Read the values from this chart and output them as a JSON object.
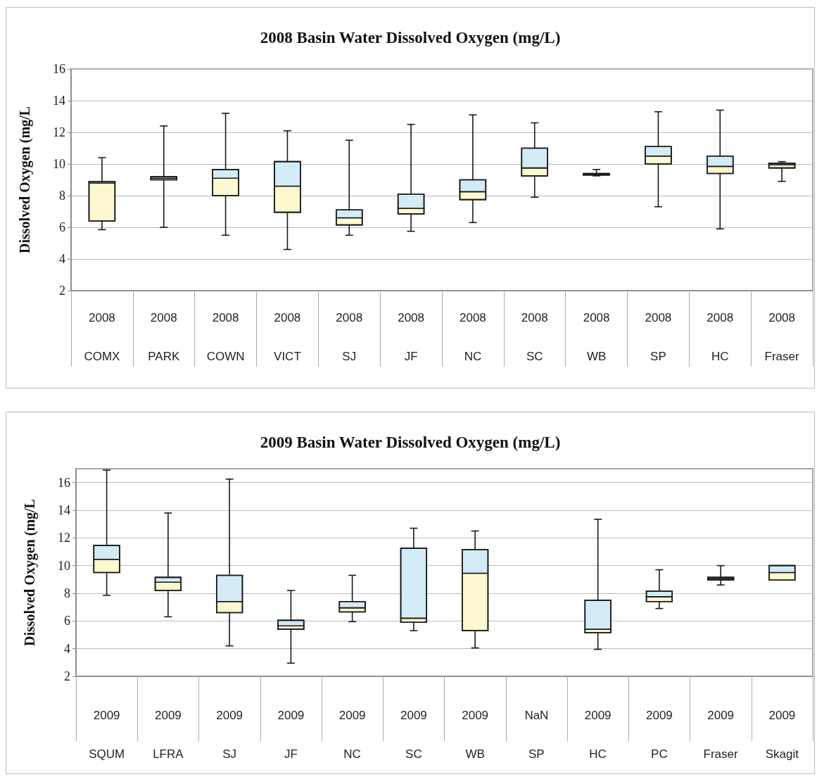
{
  "chart_data": [
    {
      "type": "box",
      "title": "2008 Basin Water Dissolved Oxygen (mg/L)",
      "ylabel": "Dissolved Oxygen (mg/L",
      "categories": [
        "2008\nCOMX",
        "2008\nPARK",
        "2008\nCOWN",
        "2008\nVICT",
        "2008\nSJ",
        "2008\nJF",
        "2008\nNC",
        "2008\nSC",
        "2008\nWB",
        "2008\nSP",
        "2008\nHC",
        "2008\nFraser"
      ],
      "boxes": [
        {
          "low": 5.85,
          "q1": 6.4,
          "median": 8.8,
          "q3": 8.9,
          "high": 10.4
        },
        {
          "low": 6.0,
          "q1": 9.0,
          "median": 9.1,
          "q3": 9.2,
          "high": 12.4
        },
        {
          "low": 5.5,
          "q1": 8.0,
          "median": 9.1,
          "q3": 9.65,
          "high": 13.2
        },
        {
          "low": 4.6,
          "q1": 6.95,
          "median": 8.6,
          "q3": 10.15,
          "high": 12.1
        },
        {
          "low": 5.5,
          "q1": 6.15,
          "median": 6.6,
          "q3": 7.1,
          "high": 11.5
        },
        {
          "low": 5.75,
          "q1": 6.85,
          "median": 7.2,
          "q3": 8.1,
          "high": 12.5
        },
        {
          "low": 6.3,
          "q1": 7.75,
          "median": 8.25,
          "q3": 9.0,
          "high": 13.1
        },
        {
          "low": 7.9,
          "q1": 9.25,
          "median": 9.75,
          "q3": 11.0,
          "high": 12.6
        },
        {
          "low": 9.25,
          "q1": 9.3,
          "median": 9.35,
          "q3": 9.4,
          "high": 9.65
        },
        {
          "low": 7.3,
          "q1": 10.0,
          "median": 10.5,
          "q3": 11.1,
          "high": 13.3
        },
        {
          "low": 5.9,
          "q1": 9.4,
          "median": 9.85,
          "q3": 10.5,
          "high": 13.4
        },
        {
          "low": 8.9,
          "q1": 9.75,
          "median": 9.95,
          "q3": 10.05,
          "high": 10.15
        }
      ],
      "ylim": [
        2,
        16
      ],
      "yticks": [
        2,
        4,
        6,
        8,
        10,
        12,
        14,
        16
      ],
      "grid": "y"
    },
    {
      "type": "box",
      "title": "2009 Basin Water Dissolved Oxygen (mg/L)",
      "ylabel": "Dissolved Oxygen (mg/L",
      "categories": [
        "2009\nSQUM",
        "2009\nLFRA",
        "2009\nSJ",
        "2009\nJF",
        "2009\nNC",
        "2009\nSC",
        "2009\nWB",
        "NaN\nSP",
        "2009\nHC",
        "2009\nPC",
        "2009\nFraser",
        "2009\nSkagit"
      ],
      "boxes": [
        {
          "low": 7.85,
          "q1": 9.5,
          "median": 10.45,
          "q3": 11.45,
          "high": 16.9
        },
        {
          "low": 6.3,
          "q1": 8.2,
          "median": 8.8,
          "q3": 9.15,
          "high": 13.8
        },
        {
          "low": 4.2,
          "q1": 6.6,
          "median": 7.4,
          "q3": 9.3,
          "high": 16.25
        },
        {
          "low": 2.95,
          "q1": 5.4,
          "median": 5.65,
          "q3": 6.05,
          "high": 8.2
        },
        {
          "low": 5.95,
          "q1": 6.65,
          "median": 6.95,
          "q3": 7.4,
          "high": 9.3
        },
        {
          "low": 5.3,
          "q1": 5.9,
          "median": 6.2,
          "q3": 11.25,
          "high": 12.7
        },
        {
          "low": 4.05,
          "q1": 5.3,
          "median": 9.45,
          "q3": 11.15,
          "high": 12.5
        },
        null,
        {
          "low": 3.95,
          "q1": 5.15,
          "median": 5.4,
          "q3": 7.5,
          "high": 13.35
        },
        {
          "low": 6.9,
          "q1": 7.4,
          "median": 7.75,
          "q3": 8.15,
          "high": 9.7
        },
        {
          "low": 8.6,
          "q1": 8.95,
          "median": 9.05,
          "q3": 9.15,
          "high": 10.0
        },
        {
          "low": 8.95,
          "q1": 8.95,
          "median": 9.5,
          "q3": 10.0,
          "high": 10.0
        }
      ],
      "ylim": [
        2,
        17
      ],
      "yticks": [
        2,
        4,
        6,
        8,
        10,
        12,
        14,
        16
      ],
      "grid": "y"
    }
  ]
}
